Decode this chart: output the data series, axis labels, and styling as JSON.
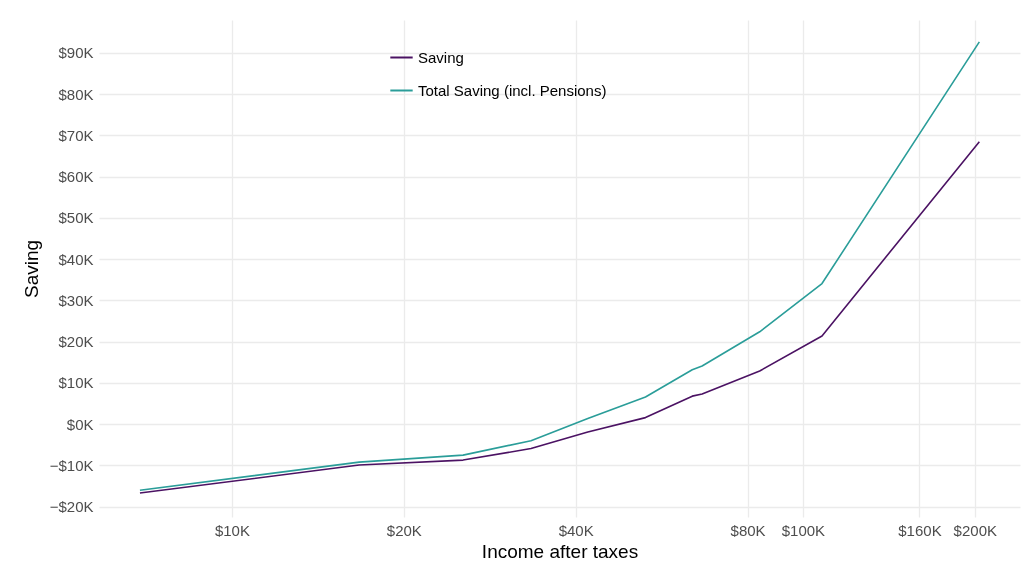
{
  "chart_data": {
    "type": "line",
    "xlabel": "Income after taxes",
    "ylabel": "Saving",
    "log": "x",
    "grid": true,
    "legend": "top",
    "line_style": "solid",
    "marker": "none",
    "xlim": [
      5850,
      240000
    ],
    "ylim": [
      -22500,
      98000
    ],
    "xticks": [
      {
        "value": 10000,
        "label": "$10K"
      },
      {
        "value": 20000,
        "label": "$20K"
      },
      {
        "value": 40000,
        "label": "$40K"
      },
      {
        "value": 80000,
        "label": "$80K"
      },
      {
        "value": 100000,
        "label": "$100K"
      },
      {
        "value": 160000,
        "label": "$160K"
      },
      {
        "value": 200000,
        "label": "$200K"
      }
    ],
    "yticks": [
      {
        "value": -20000,
        "label": "−$20K"
      },
      {
        "value": -10000,
        "label": "−$10K"
      },
      {
        "value": 0,
        "label": "$0K"
      },
      {
        "value": 10000,
        "label": "$10K"
      },
      {
        "value": 20000,
        "label": "$20K"
      },
      {
        "value": 30000,
        "label": "$30K"
      },
      {
        "value": 40000,
        "label": "$40K"
      },
      {
        "value": 50000,
        "label": "$50K"
      },
      {
        "value": 60000,
        "label": "$60K"
      },
      {
        "value": 70000,
        "label": "$70K"
      },
      {
        "value": 80000,
        "label": "$80K"
      },
      {
        "value": 90000,
        "label": "$90K"
      }
    ],
    "series": [
      {
        "name": "Saving",
        "color": "#4b1263",
        "x": [
          6900,
          16700,
          25400,
          33400,
          42000,
          53000,
          64000,
          66600,
          84000,
          108000,
          203700
        ],
        "values": [
          -16700,
          -9900,
          -8700,
          -5900,
          -1900,
          1600,
          6800,
          7300,
          12900,
          21400,
          68500
        ]
      },
      {
        "name": "Total Saving (incl. Pensions)",
        "color": "#2a9d99",
        "x": [
          6900,
          16700,
          25400,
          33400,
          42000,
          53000,
          64000,
          66600,
          84000,
          108000,
          203700
        ],
        "values": [
          -16000,
          -9200,
          -7500,
          -4000,
          1400,
          6600,
          13200,
          14100,
          22400,
          34100,
          92700
        ]
      }
    ]
  }
}
